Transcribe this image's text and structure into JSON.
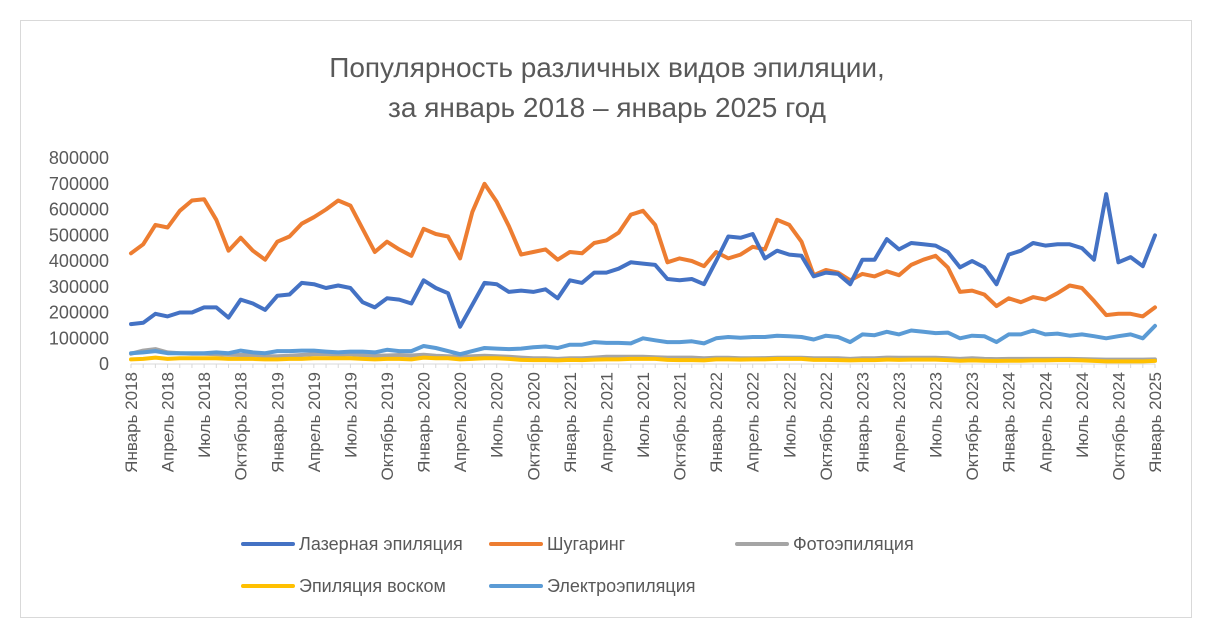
{
  "chart_data": {
    "type": "line",
    "title": [
      "Популярность различных видов эпиляции,",
      "за январь 2018 – январь 2025 год"
    ],
    "xlabel": "",
    "ylabel": "",
    "ylim": [
      0,
      800000
    ],
    "yticks": [
      "0",
      "100000",
      "200000",
      "300000",
      "400000",
      "500000",
      "600000",
      "700000",
      "800000"
    ],
    "x_tick_labels": [
      "Январь 2018",
      "Апрель 2018",
      "Июль 2018",
      "Октябрь 2018",
      "Январь 2019",
      "Апрель 2019",
      "Июль 2019",
      "Октябрь 2019",
      "Январь 2020",
      "Апрель 2020",
      "Июль 2020",
      "Октябрь 2020",
      "Январь 2021",
      "Апрель 2021",
      "Июль 2021",
      "Октябрь 2021",
      "Январь 2022",
      "Апрель 2022",
      "Июль 2022",
      "Октябрь 2022",
      "Январь 2023",
      "Апрель 2023",
      "Июль 2023",
      "Октябрь 2023",
      "Январь 2024",
      "Апрель 2024",
      "Июль 2024",
      "Октябрь 2024",
      "Январь 2025"
    ],
    "grid": false,
    "legend_position": "bottom",
    "series": [
      {
        "name": "Лазерная эпиляция",
        "color": "#4472C4",
        "values": [
          155000,
          160000,
          195000,
          185000,
          200000,
          200000,
          220000,
          220000,
          180000,
          250000,
          235000,
          210000,
          265000,
          270000,
          315000,
          310000,
          295000,
          305000,
          295000,
          240000,
          220000,
          255000,
          250000,
          235000,
          325000,
          295000,
          275000,
          145000,
          230000,
          315000,
          310000,
          280000,
          285000,
          280000,
          290000,
          255000,
          325000,
          315000,
          355000,
          355000,
          370000,
          395000,
          390000,
          385000,
          330000,
          325000,
          330000,
          310000,
          400000,
          495000,
          490000,
          505000,
          410000,
          440000,
          425000,
          420000,
          340000,
          355000,
          350000,
          310000,
          405000,
          405000,
          485000,
          445000,
          470000,
          465000,
          460000,
          435000,
          375000,
          400000,
          375000,
          310000,
          425000,
          440000,
          470000,
          460000,
          465000,
          465000,
          450000,
          405000,
          660000,
          395000,
          415000,
          380000,
          500000
        ]
      },
      {
        "name": "Шугаринг",
        "color": "#ED7D31",
        "values": [
          430000,
          465000,
          540000,
          530000,
          595000,
          635000,
          640000,
          560000,
          440000,
          490000,
          440000,
          405000,
          475000,
          495000,
          545000,
          570000,
          600000,
          635000,
          615000,
          525000,
          435000,
          475000,
          445000,
          420000,
          525000,
          505000,
          495000,
          410000,
          590000,
          700000,
          630000,
          535000,
          425000,
          435000,
          445000,
          405000,
          435000,
          430000,
          470000,
          480000,
          510000,
          580000,
          595000,
          540000,
          395000,
          410000,
          400000,
          380000,
          435000,
          410000,
          425000,
          455000,
          445000,
          560000,
          540000,
          475000,
          345000,
          365000,
          355000,
          325000,
          350000,
          340000,
          360000,
          345000,
          385000,
          405000,
          420000,
          375000,
          280000,
          285000,
          270000,
          225000,
          255000,
          240000,
          260000,
          250000,
          275000,
          305000,
          295000,
          245000,
          190000,
          195000,
          195000,
          185000,
          220000
        ]
      },
      {
        "name": "Фотоэпиляция",
        "color": "#A5A5A5",
        "values": [
          40000,
          52000,
          58000,
          45000,
          42000,
          40000,
          40000,
          38000,
          36000,
          35000,
          35000,
          30000,
          30000,
          32000,
          35000,
          38000,
          38000,
          36000,
          38000,
          34000,
          32000,
          33000,
          35000,
          33000,
          36000,
          32000,
          30000,
          28000,
          30000,
          32000,
          30000,
          28000,
          25000,
          22000,
          22000,
          20000,
          22000,
          22000,
          25000,
          28000,
          28000,
          28000,
          28000,
          26000,
          25000,
          25000,
          25000,
          22000,
          24000,
          24000,
          22000,
          22000,
          23000,
          24000,
          24000,
          24000,
          22000,
          22000,
          22000,
          20000,
          22000,
          22000,
          25000,
          24000,
          24000,
          24000,
          24000,
          22000,
          20000,
          22000,
          20000,
          19000,
          20000,
          20000,
          20000,
          20000,
          20000,
          20000,
          19000,
          18000,
          17000,
          17000,
          17000,
          17000,
          18000
        ]
      },
      {
        "name": "Эпиляция воском",
        "color": "#FFC000",
        "values": [
          18000,
          20000,
          25000,
          20000,
          22000,
          22000,
          22000,
          22000,
          20000,
          20000,
          20000,
          18000,
          18000,
          20000,
          20000,
          22000,
          22000,
          22000,
          22000,
          20000,
          18000,
          20000,
          20000,
          18000,
          25000,
          22000,
          22000,
          18000,
          20000,
          22000,
          22000,
          20000,
          16000,
          15000,
          15000,
          14000,
          16000,
          15000,
          17000,
          18000,
          18000,
          20000,
          20000,
          20000,
          16000,
          15000,
          15000,
          14000,
          18000,
          18000,
          17000,
          18000,
          18000,
          20000,
          20000,
          20000,
          16000,
          16000,
          15000,
          14000,
          15000,
          15000,
          17000,
          16000,
          17000,
          17000,
          17000,
          15000,
          13000,
          14000,
          13000,
          12000,
          13000,
          13000,
          14000,
          14000,
          15000,
          15000,
          14000,
          12000,
          10000,
          10000,
          10000,
          10000,
          12000
        ]
      },
      {
        "name": "Электроэпиляция",
        "color": "#5B9BD5",
        "values": [
          42000,
          45000,
          50000,
          42000,
          42000,
          42000,
          42000,
          45000,
          42000,
          52000,
          45000,
          42000,
          50000,
          50000,
          52000,
          52000,
          48000,
          45000,
          48000,
          48000,
          45000,
          55000,
          50000,
          50000,
          70000,
          62000,
          50000,
          38000,
          50000,
          62000,
          60000,
          58000,
          60000,
          65000,
          68000,
          62000,
          75000,
          75000,
          85000,
          82000,
          82000,
          80000,
          100000,
          92000,
          85000,
          85000,
          88000,
          80000,
          100000,
          105000,
          102000,
          105000,
          105000,
          110000,
          108000,
          105000,
          95000,
          110000,
          105000,
          85000,
          115000,
          112000,
          125000,
          115000,
          130000,
          125000,
          120000,
          122000,
          100000,
          110000,
          108000,
          85000,
          115000,
          115000,
          130000,
          115000,
          118000,
          110000,
          115000,
          108000,
          100000,
          108000,
          115000,
          100000,
          148000
        ]
      }
    ]
  }
}
